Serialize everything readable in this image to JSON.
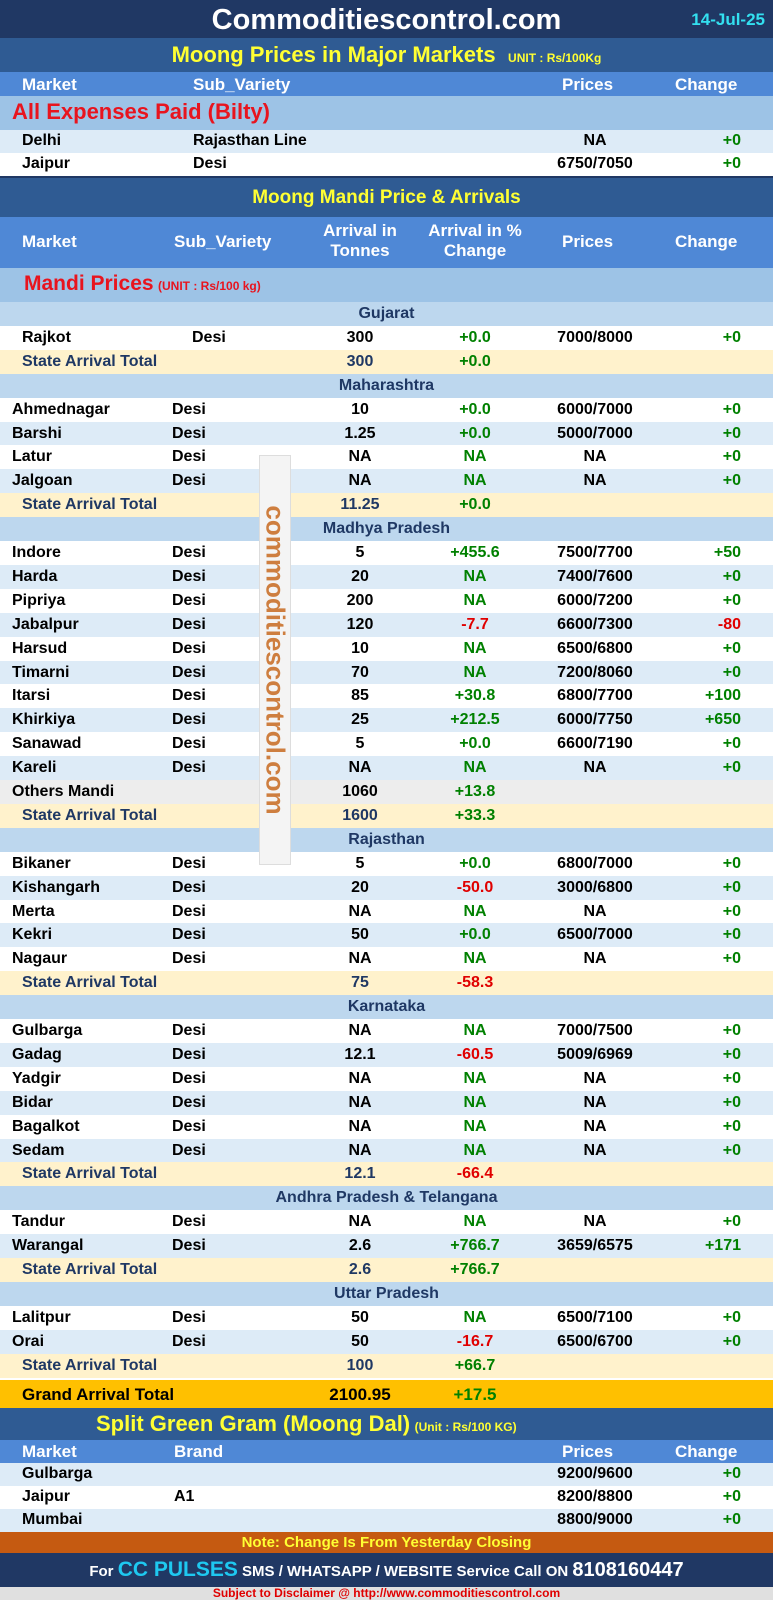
{
  "header": {
    "site": "Commoditiescontrol.com",
    "date": "14-Jul-25"
  },
  "major": {
    "title": "Moong Prices in Major Markets",
    "unit": "UNIT : Rs/100Kg",
    "cols": [
      "Market",
      "Sub_Variety",
      "Prices",
      "Change"
    ],
    "section": "All Expenses Paid (Bilty)",
    "rows": [
      [
        "Delhi",
        "Rajasthan Line",
        "NA",
        "+0"
      ],
      [
        "Jaipur",
        "Desi",
        "6750/7050",
        "+0"
      ]
    ]
  },
  "mandi": {
    "title": "Moong Mandi Price & Arrivals",
    "cols": [
      "Market",
      "Sub_Variety",
      "Arrival in Tonnes",
      "Arrival  in % Change",
      "Prices",
      "Change"
    ],
    "section": "Mandi Prices",
    "unit": "(UNIT : Rs/100 kg)",
    "rows": [
      {
        "t": "state",
        "m": "Gujarat"
      },
      {
        "m": "Rajkot",
        "v": "Desi",
        "a": "300",
        "p": "+0.0",
        "pr": "7000/8000",
        "c": "+0"
      },
      {
        "t": "sat",
        "m": "State Arrival Total",
        "a": "300",
        "p": "+0.0"
      },
      {
        "t": "state",
        "m": "Maharashtra"
      },
      {
        "m": "Ahmednagar",
        "v": "Desi",
        "a": "10",
        "p": "+0.0",
        "pr": "6000/7000",
        "c": "+0"
      },
      {
        "m": "Barshi",
        "v": "Desi",
        "a": "1.25",
        "p": "+0.0",
        "pr": "5000/7000",
        "c": "+0"
      },
      {
        "m": "Latur",
        "v": "Desi",
        "a": "NA",
        "p": "NA",
        "pr": "NA",
        "c": "+0"
      },
      {
        "m": "Jalgoan",
        "v": "Desi",
        "a": "NA",
        "p": "NA",
        "pr": "NA",
        "c": "+0"
      },
      {
        "t": "sat",
        "m": "State Arrival Total",
        "a": "11.25",
        "p": "+0.0"
      },
      {
        "t": "state",
        "m": "Madhya Pradesh"
      },
      {
        "m": "Indore",
        "v": "Desi",
        "a": "5",
        "p": "+455.6",
        "pr": "7500/7700",
        "c": "+50"
      },
      {
        "m": "Harda",
        "v": "Desi",
        "a": "20",
        "p": "NA",
        "pr": "7400/7600",
        "c": "+0"
      },
      {
        "m": "Pipriya",
        "v": "Desi",
        "a": "200",
        "p": "NA",
        "pr": "6000/7200",
        "c": "+0"
      },
      {
        "m": "Jabalpur",
        "v": "Desi",
        "a": "120",
        "p": "-7.7",
        "pr": "6600/7300",
        "c": "-80"
      },
      {
        "m": "Harsud",
        "v": "Desi",
        "a": "10",
        "p": "NA",
        "pr": "6500/6800",
        "c": "+0"
      },
      {
        "m": "Timarni",
        "v": "Desi",
        "a": "70",
        "p": "NA",
        "pr": "7200/8060",
        "c": "+0"
      },
      {
        "m": "Itarsi",
        "v": "Desi",
        "a": "85",
        "p": "+30.8",
        "pr": "6800/7700",
        "c": "+100"
      },
      {
        "m": "Khirkiya",
        "v": "Desi",
        "a": "25",
        "p": "+212.5",
        "pr": "6000/7750",
        "c": "+650"
      },
      {
        "m": "Sanawad",
        "v": "Desi",
        "a": "5",
        "p": "+0.0",
        "pr": "6600/7190",
        "c": "+0"
      },
      {
        "m": "Kareli",
        "v": "Desi",
        "a": "NA",
        "p": "NA",
        "pr": "NA",
        "c": "+0"
      },
      {
        "t": "others",
        "m": "Others Mandi",
        "a": "1060",
        "p": "+13.8"
      },
      {
        "t": "sat",
        "m": "State Arrival Total",
        "a": "1600",
        "p": "+33.3"
      },
      {
        "t": "state",
        "m": "Rajasthan"
      },
      {
        "m": "Bikaner",
        "v": "Desi",
        "a": "5",
        "p": "+0.0",
        "pr": "6800/7000",
        "c": "+0"
      },
      {
        "m": "Kishangarh",
        "v": "Desi",
        "a": "20",
        "p": "-50.0",
        "pr": "3000/6800",
        "c": "+0"
      },
      {
        "m": "Merta",
        "v": "Desi",
        "a": "NA",
        "p": "NA",
        "pr": "NA",
        "c": "+0"
      },
      {
        "m": "Kekri",
        "v": "Desi",
        "a": "50",
        "p": "+0.0",
        "pr": "6500/7000",
        "c": "+0"
      },
      {
        "m": "Nagaur",
        "v": "Desi",
        "a": "NA",
        "p": "NA",
        "pr": "NA",
        "c": "+0"
      },
      {
        "t": "sat",
        "m": "State Arrival Total",
        "a": "75",
        "p": "-58.3"
      },
      {
        "t": "state",
        "m": "Karnataka"
      },
      {
        "m": "Gulbarga",
        "v": "Desi",
        "a": "NA",
        "p": "NA",
        "pr": "7000/7500",
        "c": "+0"
      },
      {
        "m": "Gadag",
        "v": "Desi",
        "a": "12.1",
        "p": "-60.5",
        "pr": "5009/6969",
        "c": "+0"
      },
      {
        "m": "Yadgir",
        "v": "Desi",
        "a": "NA",
        "p": "NA",
        "pr": "NA",
        "c": "+0"
      },
      {
        "m": "Bidar",
        "v": "Desi",
        "a": "NA",
        "p": "NA",
        "pr": "NA",
        "c": "+0"
      },
      {
        "m": "Bagalkot",
        "v": "Desi",
        "a": "NA",
        "p": "NA",
        "pr": "NA",
        "c": "+0"
      },
      {
        "m": "Sedam",
        "v": "Desi",
        "a": "NA",
        "p": "NA",
        "pr": "NA",
        "c": "+0"
      },
      {
        "t": "sat",
        "m": "State Arrival Total",
        "a": "12.1",
        "p": "-66.4"
      },
      {
        "t": "state",
        "m": "Andhra Pradesh & Telangana"
      },
      {
        "m": "Tandur",
        "v": "Desi",
        "a": "NA",
        "p": "NA",
        "pr": "NA",
        "c": "+0"
      },
      {
        "m": "Warangal",
        "v": "Desi",
        "a": "2.6",
        "p": "+766.7",
        "pr": "3659/6575",
        "c": "+171"
      },
      {
        "t": "sat",
        "m": "State Arrival Total",
        "a": "2.6",
        "p": "+766.7"
      },
      {
        "t": "state",
        "m": "Uttar Pradesh"
      },
      {
        "m": "Lalitpur",
        "v": "Desi",
        "a": "50",
        "p": "NA",
        "pr": "6500/7100",
        "c": "+0"
      },
      {
        "m": "Orai",
        "v": "Desi",
        "a": "50",
        "p": "-16.7",
        "pr": "6500/6700",
        "c": "+0"
      },
      {
        "t": "sat",
        "m": "State Arrival Total",
        "a": "100",
        "p": "+66.7"
      }
    ],
    "grand": {
      "label": "Grand Arrival Total",
      "a": "2100.95",
      "p": "+17.5"
    }
  },
  "dal": {
    "title": "Split Green Gram (Moong Dal)",
    "unit": "(Unit : Rs/100 KG)",
    "cols": [
      "Market",
      "Brand",
      "Prices",
      "Change"
    ],
    "rows": [
      [
        "Gulbarga",
        "",
        "9200/9600",
        "+0"
      ],
      [
        "Jaipur",
        "A1",
        "8200/8800",
        "+0"
      ],
      [
        "Mumbai",
        "",
        "8800/9000",
        "+0"
      ]
    ]
  },
  "footer": {
    "note": "Note: Change Is From Yesterday Closing",
    "for": "For",
    "cc": "CC PULSES",
    "service": "SMS / WHATSAPP / WEBSITE Service Call  ON",
    "phone": "8108160447",
    "disclaimer": "Subject to Disclaimer @  http://www.commoditiescontrol.com"
  },
  "watermark": "commoditiescontrol.com",
  "colors": {
    "positive": "#008000",
    "negative": "#e00000",
    "accent": "#ffff33"
  }
}
